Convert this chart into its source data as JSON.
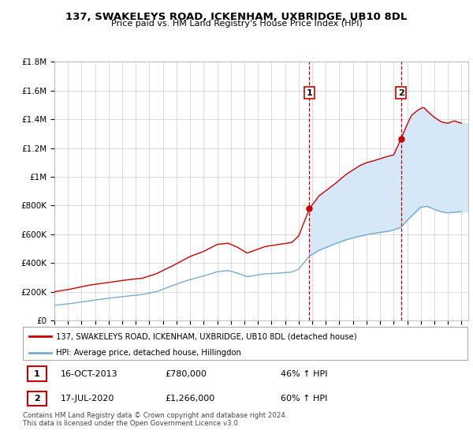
{
  "title": "137, SWAKELEYS ROAD, ICKENHAM, UXBRIDGE, UB10 8DL",
  "subtitle": "Price paid vs. HM Land Registry's House Price Index (HPI)",
  "ylim": [
    0,
    1800000
  ],
  "yticks": [
    0,
    200000,
    400000,
    600000,
    800000,
    1000000,
    1200000,
    1400000,
    1600000,
    1800000
  ],
  "ytick_labels": [
    "£0",
    "£200K",
    "£400K",
    "£600K",
    "£800K",
    "£1M",
    "£1.2M",
    "£1.4M",
    "£1.6M",
    "£1.8M"
  ],
  "xmin": 1995.0,
  "xmax": 2025.5,
  "red_color": "#cc0000",
  "blue_color": "#7aabcf",
  "shade_color": "#d6e8f7",
  "vline_color": "#cc0000",
  "point1_x": 2013.79,
  "point1_y": 780000,
  "point2_x": 2020.54,
  "point2_y": 1266000,
  "legend_line1": "137, SWAKELEYS ROAD, ICKENHAM, UXBRIDGE, UB10 8DL (detached house)",
  "legend_line2": "HPI: Average price, detached house, Hillingdon",
  "annotation1_date": "16-OCT-2013",
  "annotation1_price": "£780,000",
  "annotation1_hpi": "46% ↑ HPI",
  "annotation2_date": "17-JUL-2020",
  "annotation2_price": "£1,266,000",
  "annotation2_hpi": "60% ↑ HPI",
  "footer": "Contains HM Land Registry data © Crown copyright and database right 2024.\nThis data is licensed under the Open Government Licence v3.0."
}
